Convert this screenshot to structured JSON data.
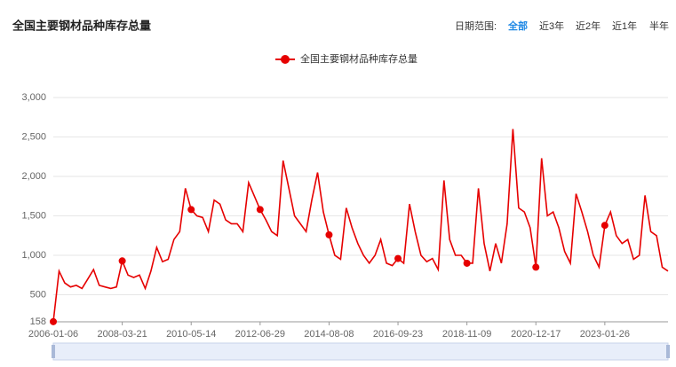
{
  "ui": {
    "date_range_label": "日期范围:",
    "range_options": [
      "全部",
      "近3年",
      "近2年",
      "近1年",
      "半年"
    ],
    "active_option": 0
  },
  "chart_data": {
    "type": "line",
    "title": "全国主要钢材品种库存总量",
    "categories": [
      "2006-01-06",
      null,
      null,
      null,
      null,
      null,
      null,
      null,
      null,
      null,
      null,
      null,
      "2008-03-21",
      null,
      null,
      null,
      null,
      null,
      null,
      null,
      null,
      null,
      null,
      null,
      "2010-05-14",
      null,
      null,
      null,
      null,
      null,
      null,
      null,
      null,
      null,
      null,
      null,
      "2012-06-29",
      null,
      null,
      null,
      null,
      null,
      null,
      null,
      null,
      null,
      null,
      null,
      "2014-08-08",
      null,
      null,
      null,
      null,
      null,
      null,
      null,
      null,
      null,
      null,
      null,
      "2016-09-23",
      null,
      null,
      null,
      null,
      null,
      null,
      null,
      null,
      null,
      null,
      null,
      "2018-11-09",
      null,
      null,
      null,
      null,
      null,
      null,
      null,
      null,
      null,
      null,
      null,
      "2020-12-17",
      null,
      null,
      null,
      null,
      null,
      null,
      null,
      null,
      null,
      null,
      null,
      "2023-01-26",
      null,
      null,
      null,
      null,
      null,
      null,
      null,
      null,
      null,
      null,
      null
    ],
    "series": [
      {
        "name": "全国主要钢材品种库存总量",
        "color": "#e60000",
        "values": [
          160,
          800,
          650,
          600,
          620,
          580,
          700,
          820,
          620,
          600,
          580,
          600,
          930,
          750,
          720,
          750,
          580,
          800,
          1100,
          920,
          950,
          1200,
          1300,
          1850,
          1580,
          1500,
          1480,
          1300,
          1700,
          1650,
          1450,
          1400,
          1400,
          1300,
          1920,
          1750,
          1580,
          1450,
          1300,
          1250,
          2200,
          1850,
          1500,
          1400,
          1300,
          1700,
          2050,
          1550,
          1260,
          1000,
          950,
          1600,
          1350,
          1150,
          1000,
          900,
          1000,
          1200,
          900,
          870,
          960,
          900,
          1650,
          1300,
          1000,
          920,
          960,
          820,
          1950,
          1200,
          1000,
          1000,
          900,
          900,
          1850,
          1150,
          800,
          1150,
          900,
          1400,
          2600,
          1600,
          1550,
          1350,
          850,
          2230,
          1500,
          1550,
          1350,
          1050,
          900,
          1780,
          1550,
          1300,
          1000,
          850,
          1380,
          1550,
          1250,
          1150,
          1200,
          950,
          1000,
          1760,
          1300,
          1250,
          850,
          800
        ]
      }
    ],
    "ylim": [
      158,
      3000
    ],
    "yticks": [
      158,
      500,
      {
        "value": 1000,
        "label": "1,000"
      },
      {
        "value": 1500,
        "label": "1,500"
      },
      {
        "value": 2000,
        "label": "2,000"
      },
      {
        "value": 2500,
        "label": "2,500"
      },
      {
        "value": 3000,
        "label": "3,000"
      }
    ],
    "grid": true
  }
}
